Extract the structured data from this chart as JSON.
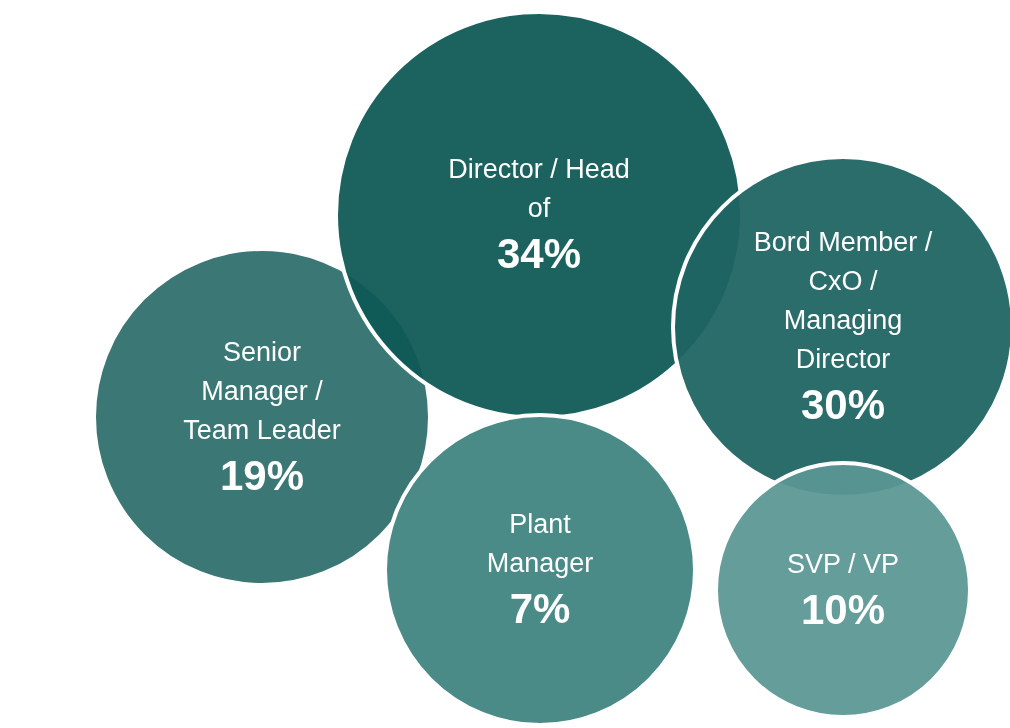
{
  "chart_data": {
    "type": "other",
    "categories": [
      "Senior Manager / Team Leader",
      "Director / Head of",
      "Bord Member / CxO / Managing Director",
      "Plant Manager",
      "SVP / VP"
    ],
    "values": [
      19,
      34,
      30,
      7,
      10
    ],
    "value_labels": [
      "19%",
      "34%",
      "30%",
      "7%",
      "10%"
    ],
    "colors": [
      "#2e6e6c",
      "#0e5956",
      "#1e6462",
      "#3f8480",
      "#5a9794"
    ]
  }
}
